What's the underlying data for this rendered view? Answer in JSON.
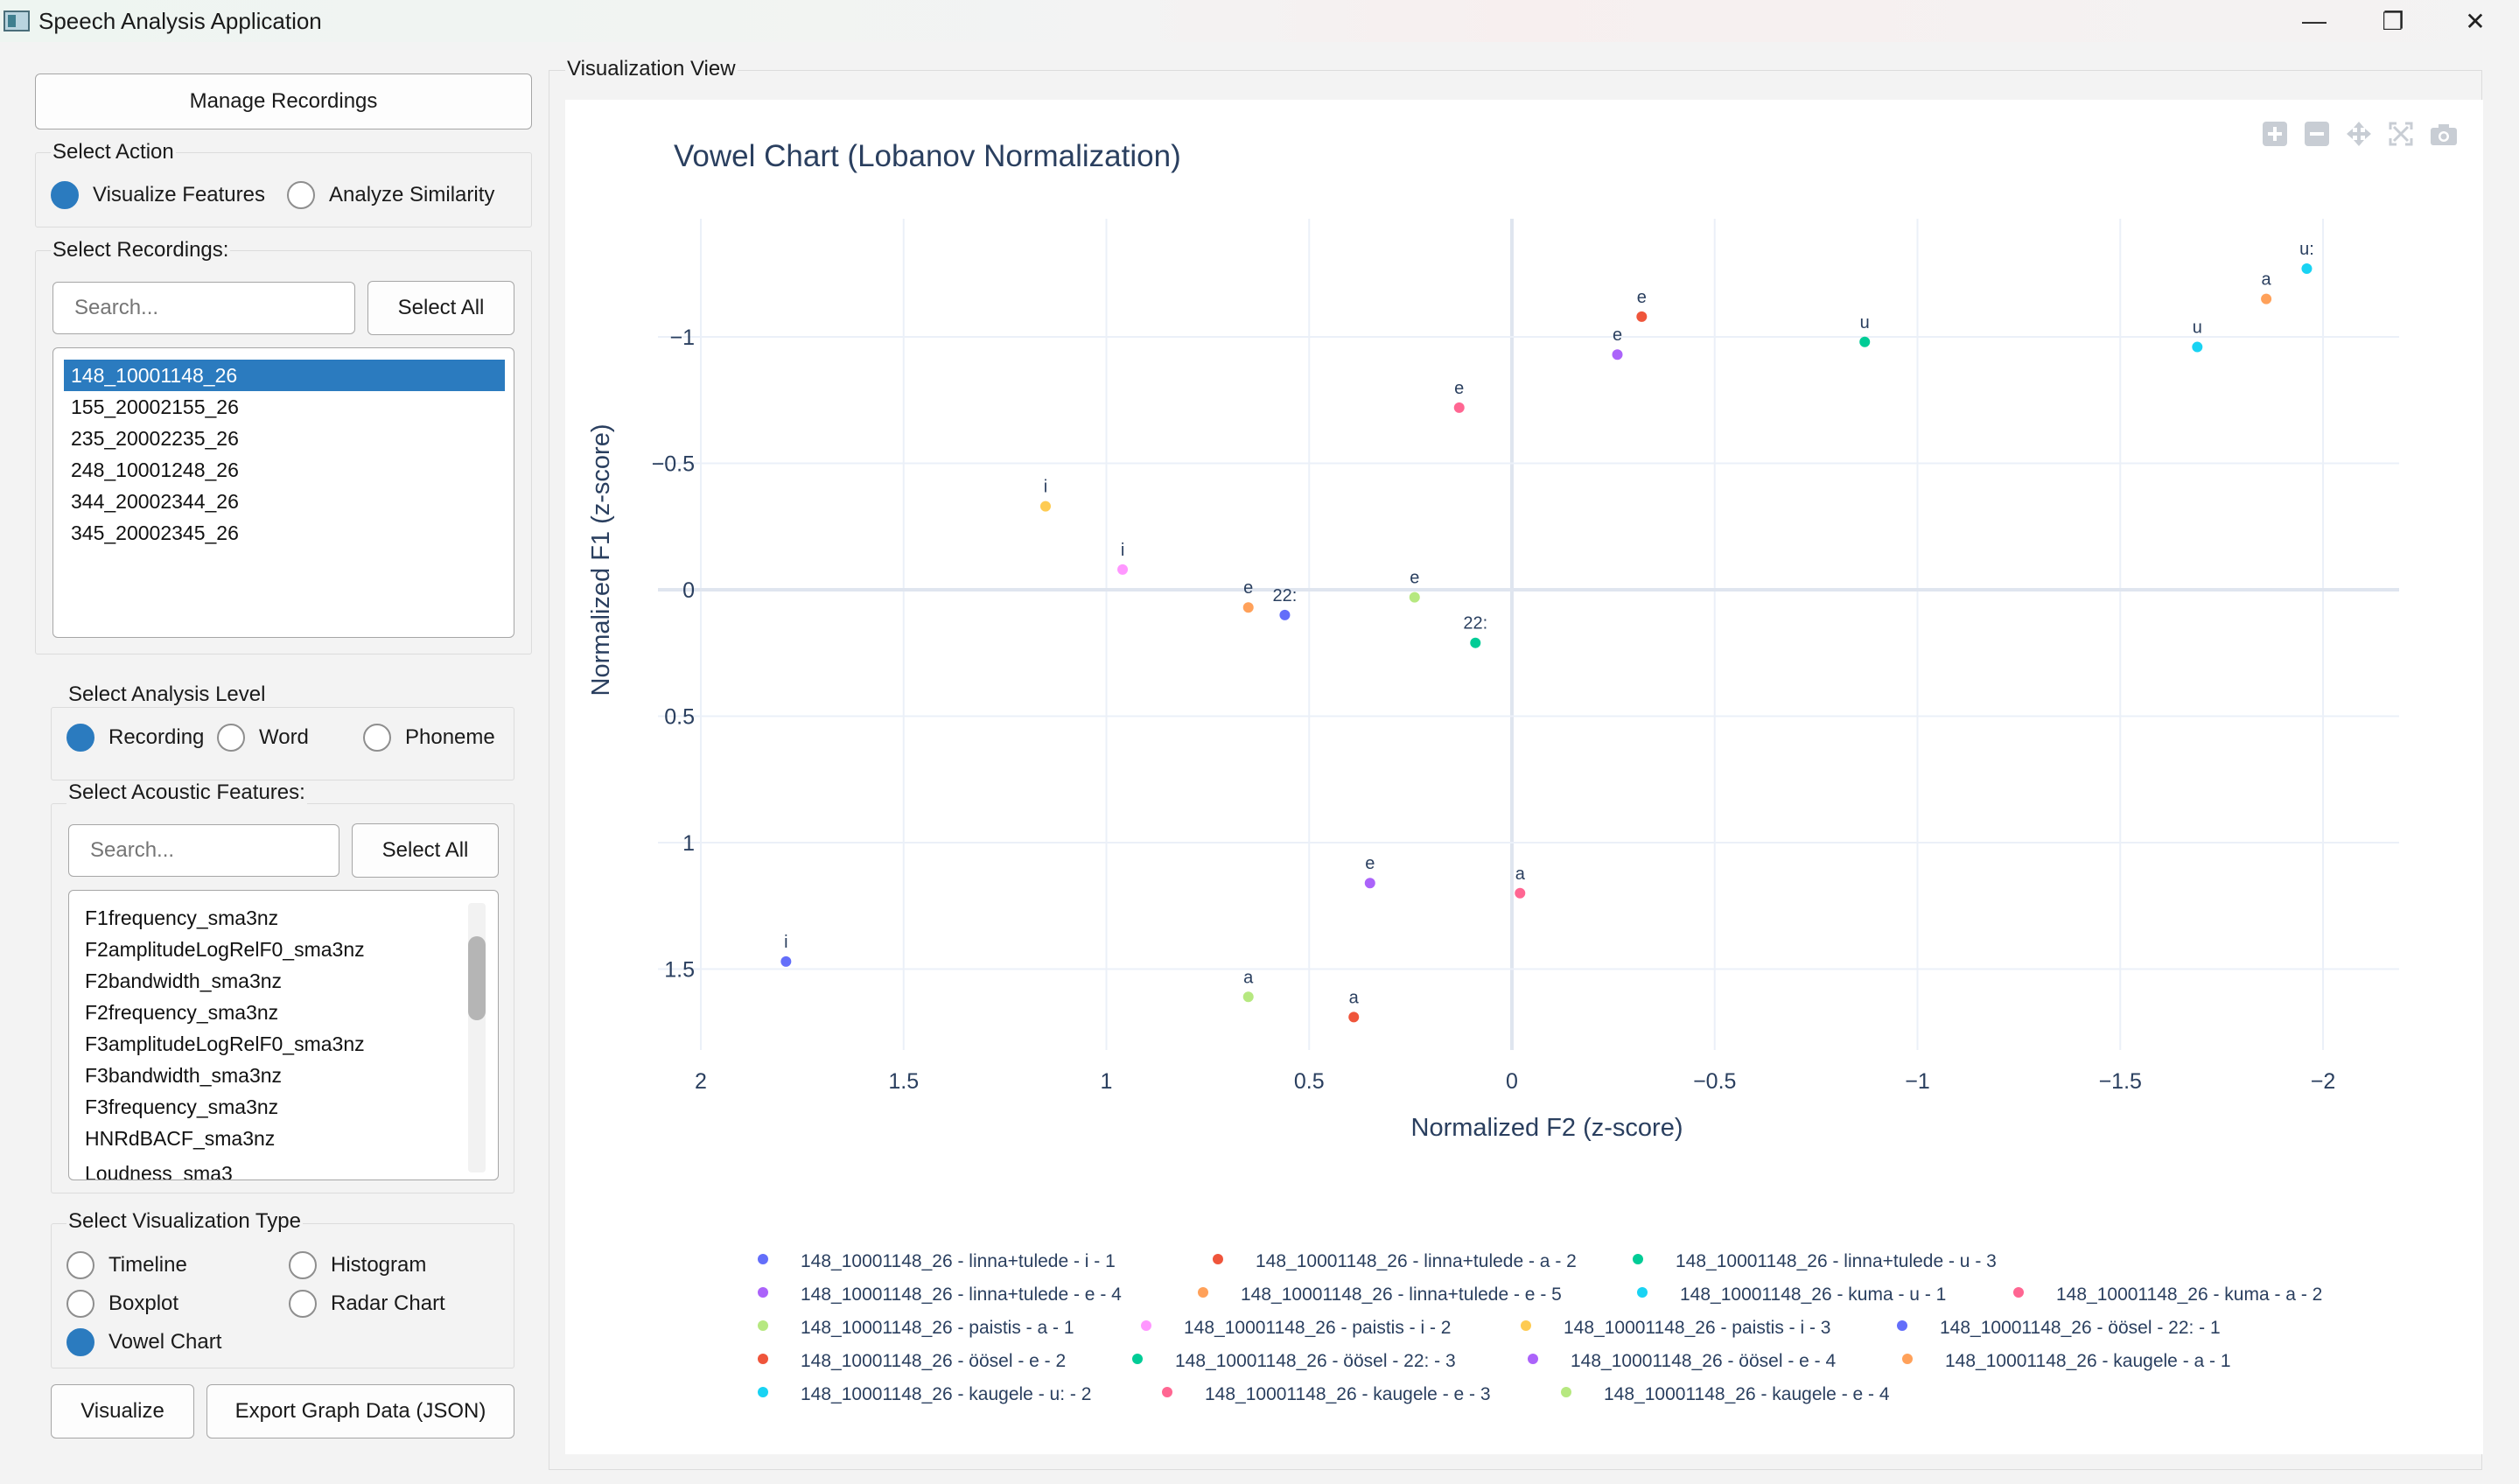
{
  "window": {
    "title": "Speech Analysis Application",
    "minimize_glyph": "—",
    "maximize_glyph": "❐",
    "close_glyph": "✕"
  },
  "left_panel": {
    "manage_button": "Manage Recordings",
    "select_action": {
      "title": "Select Action",
      "options": [
        "Visualize Features",
        "Analyze Similarity"
      ],
      "selected": "Visualize Features"
    },
    "select_recordings": {
      "title": "Select Recordings:",
      "search_placeholder": "Search...",
      "select_all": "Select All",
      "items": [
        "148_10001148_26",
        "155_20002155_26",
        "235_20002235_26",
        "248_10001248_26",
        "344_20002344_26",
        "345_20002345_26"
      ],
      "selected": "148_10001148_26"
    },
    "analysis_level": {
      "title": "Select Analysis Level",
      "options": [
        "Recording",
        "Word",
        "Phoneme"
      ],
      "selected": "Recording"
    },
    "acoustic_features": {
      "title": "Select Acoustic Features:",
      "search_placeholder": "Search...",
      "select_all": "Select All",
      "items": [
        "F1frequency_sma3nz",
        "F2amplitudeLogRelF0_sma3nz",
        "F2bandwidth_sma3nz",
        "F2frequency_sma3nz",
        "F3amplitudeLogRelF0_sma3nz",
        "F3bandwidth_sma3nz",
        "F3frequency_sma3nz",
        "HNRdBACF_sma3nz",
        "Loudness_sma3"
      ]
    },
    "visualization_type": {
      "title": "Select Visualization Type",
      "options": [
        "Timeline",
        "Histogram",
        "Boxplot",
        "Radar Chart",
        "Vowel Chart"
      ],
      "selected": "Vowel Chart"
    },
    "visualize_button": "Visualize",
    "export_button": "Export Graph Data (JSON)"
  },
  "viz": {
    "group_title": "Visualization View",
    "modebar": [
      "zoom-in-icon",
      "zoom-out-icon",
      "pan-icon",
      "autoscale-icon",
      "camera-icon"
    ]
  },
  "colors": {
    "accent": "#2b7bbf",
    "axis_text": "#2a3f5f",
    "grid": "#ebf0f8"
  },
  "chart_data": {
    "type": "scatter",
    "title": "Vowel Chart (Lobanov Normalization)",
    "xlabel": "Normalized F2 (z-score)",
    "ylabel": "Normalized F1 (z-score)",
    "xlim": [
      2.0,
      -2.2
    ],
    "ylim": [
      -1.45,
      1.92
    ],
    "x_reversed": true,
    "y_reversed": true,
    "x_ticks": [
      2,
      1.5,
      1,
      0.5,
      0,
      -0.5,
      -1,
      -1.5,
      -2
    ],
    "x_tick_labels": [
      "2",
      "1.5",
      "1",
      "0.5",
      "0",
      "−0.5",
      "−1",
      "−1.5",
      "−2"
    ],
    "y_ticks": [
      -1,
      -0.5,
      0,
      0.5,
      1,
      1.5
    ],
    "y_tick_labels": [
      "−1",
      "−0.5",
      "0",
      "0.5",
      "1",
      "1.5"
    ],
    "grid": true,
    "legend_position": "bottom",
    "series": [
      {
        "name": "148_10001148_26 - linna+tulede - i - 1",
        "color": "#636efa",
        "x": 1.79,
        "y": 1.47,
        "label": "i"
      },
      {
        "name": "148_10001148_26 - linna+tulede - a - 2",
        "color": "#ef553b",
        "x": 0.39,
        "y": 1.69,
        "label": "a"
      },
      {
        "name": "148_10001148_26 - linna+tulede - u - 3",
        "color": "#00cc96",
        "x": -0.87,
        "y": -0.98,
        "label": "u"
      },
      {
        "name": "148_10001148_26 - linna+tulede - e - 4",
        "color": "#ab63fa",
        "x": -0.26,
        "y": -0.93,
        "label": "e"
      },
      {
        "name": "148_10001148_26 - linna+tulede - e - 5",
        "color": "#ffa15a",
        "x": 0.65,
        "y": 0.07,
        "label": "e"
      },
      {
        "name": "148_10001148_26 - kuma - u - 1",
        "color": "#19d3f3",
        "x": -1.69,
        "y": -0.96,
        "label": "u"
      },
      {
        "name": "148_10001148_26 - kuma - a - 2",
        "color": "#ff6692",
        "x": -0.02,
        "y": 1.2,
        "label": "a"
      },
      {
        "name": "148_10001148_26 - paistis - a - 1",
        "color": "#b6e880",
        "x": 0.65,
        "y": 1.61,
        "label": "a"
      },
      {
        "name": "148_10001148_26 - paistis - i - 2",
        "color": "#ff97ff",
        "x": 0.96,
        "y": -0.08,
        "label": "i"
      },
      {
        "name": "148_10001148_26 - paistis - i - 3",
        "color": "#fecb52",
        "x": 1.15,
        "y": -0.33,
        "label": "i"
      },
      {
        "name": "148_10001148_26 - öösel - 22: - 1",
        "color": "#636efa",
        "x": 0.56,
        "y": 0.1,
        "label": "22:"
      },
      {
        "name": "148_10001148_26 - öösel - e - 2",
        "color": "#ef553b",
        "x": -0.32,
        "y": -1.08,
        "label": "e"
      },
      {
        "name": "148_10001148_26 - öösel - 22: - 3",
        "color": "#00cc96",
        "x": 0.09,
        "y": 0.21,
        "label": "22:"
      },
      {
        "name": "148_10001148_26 - öösel - e - 4",
        "color": "#ab63fa",
        "x": 0.35,
        "y": 1.16,
        "label": "e"
      },
      {
        "name": "148_10001148_26 - kaugele - a - 1",
        "color": "#ffa15a",
        "x": -1.86,
        "y": -1.15,
        "label": "a"
      },
      {
        "name": "148_10001148_26 - kaugele - u: - 2",
        "color": "#19d3f3",
        "x": -1.96,
        "y": -1.27,
        "label": "u:"
      },
      {
        "name": "148_10001148_26 - kaugele - e - 3",
        "color": "#ff6692",
        "x": 0.13,
        "y": -0.72,
        "label": "e"
      },
      {
        "name": "148_10001148_26 - kaugele - e - 4",
        "color": "#b6e880",
        "x": 0.24,
        "y": 0.03,
        "label": "e"
      }
    ]
  }
}
